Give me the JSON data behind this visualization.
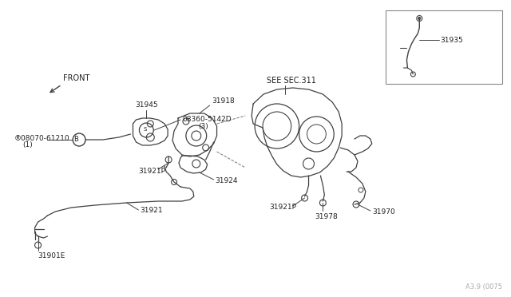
{
  "background_color": "#ffffff",
  "fig_width": 6.4,
  "fig_height": 3.72,
  "dpi": 100,
  "watermark": "A3.9 (0075",
  "labels": {
    "front": "FRONT",
    "see_sec": "SEE SEC.311",
    "part_31945": "31945",
    "part_31918": "31918",
    "part_08360": "08360-5142D",
    "part_08360_sub": "(3)",
    "part_08070": "®08070-61210",
    "part_08070_sub": "(1)",
    "part_31921P_left": "31921P",
    "part_31924": "31924",
    "part_31921": "31921",
    "part_31901E": "31901E",
    "part_31921P_right": "31921P",
    "part_31970": "31970",
    "part_31978": "31978",
    "part_31935": "31935"
  },
  "lc": "#404040",
  "tc": "#202020"
}
